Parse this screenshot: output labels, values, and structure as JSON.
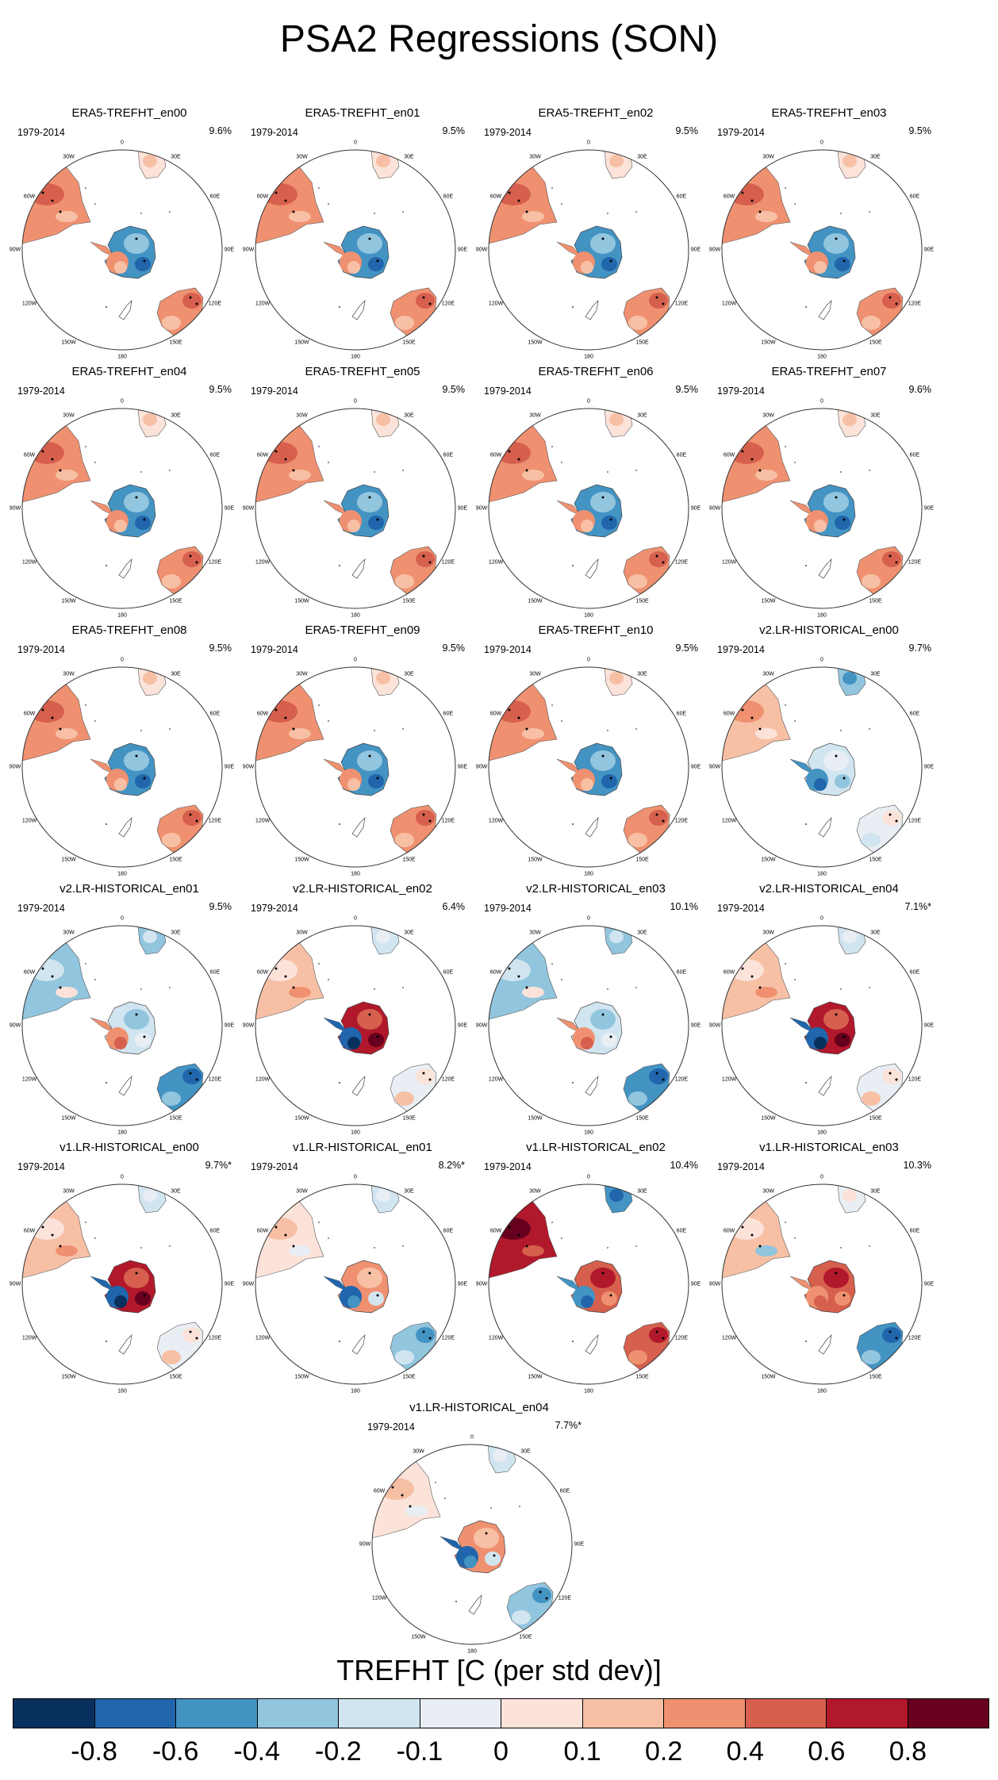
{
  "title": "PSA2 Regressions (SON)",
  "colorbar": {
    "title": "TREFHT [C (per std dev)]",
    "labels": [
      "-0.8",
      "-0.6",
      "-0.4",
      "-0.2",
      "-0.1",
      "0",
      "0.1",
      "0.2",
      "0.4",
      "0.6",
      "0.8"
    ],
    "colors": [
      "#08305e",
      "#2166ac",
      "#4393c3",
      "#92c5de",
      "#d1e5f0",
      "#e9eef4",
      "#fbe3da",
      "#f7c0a5",
      "#ef9170",
      "#d6604d",
      "#b2182b",
      "#67001f"
    ]
  },
  "lon_labels": [
    "0",
    "30E",
    "60E",
    "90E",
    "120E",
    "150E",
    "180",
    "150W",
    "120W",
    "90W",
    "60W",
    "30W"
  ],
  "chart_data": [
    {
      "type": "heatmap",
      "title": "ERA5-TREFHT_en00",
      "period": "1979-2014",
      "variance": "9.6%",
      "pattern": "era5"
    },
    {
      "type": "heatmap",
      "title": "ERA5-TREFHT_en01",
      "period": "1979-2014",
      "variance": "9.5%",
      "pattern": "era5"
    },
    {
      "type": "heatmap",
      "title": "ERA5-TREFHT_en02",
      "period": "1979-2014",
      "variance": "9.5%",
      "pattern": "era5"
    },
    {
      "type": "heatmap",
      "title": "ERA5-TREFHT_en03",
      "period": "1979-2014",
      "variance": "9.5%",
      "pattern": "era5"
    },
    {
      "type": "heatmap",
      "title": "ERA5-TREFHT_en04",
      "period": "1979-2014",
      "variance": "9.5%",
      "pattern": "era5"
    },
    {
      "type": "heatmap",
      "title": "ERA5-TREFHT_en05",
      "period": "1979-2014",
      "variance": "9.5%",
      "pattern": "era5"
    },
    {
      "type": "heatmap",
      "title": "ERA5-TREFHT_en06",
      "period": "1979-2014",
      "variance": "9.5%",
      "pattern": "era5"
    },
    {
      "type": "heatmap",
      "title": "ERA5-TREFHT_en07",
      "period": "1979-2014",
      "variance": "9.6%",
      "pattern": "era5"
    },
    {
      "type": "heatmap",
      "title": "ERA5-TREFHT_en08",
      "period": "1979-2014",
      "variance": "9.5%",
      "pattern": "era5"
    },
    {
      "type": "heatmap",
      "title": "ERA5-TREFHT_en09",
      "period": "1979-2014",
      "variance": "9.5%",
      "pattern": "era5"
    },
    {
      "type": "heatmap",
      "title": "ERA5-TREFHT_en10",
      "period": "1979-2014",
      "variance": "9.5%",
      "pattern": "era5"
    },
    {
      "type": "heatmap",
      "title": "v2.LR-HISTORICAL_en00",
      "period": "1979-2014",
      "variance": "9.7%",
      "pattern": "v2a"
    },
    {
      "type": "heatmap",
      "title": "v2.LR-HISTORICAL_en01",
      "period": "1979-2014",
      "variance": "9.5%",
      "pattern": "v2b"
    },
    {
      "type": "heatmap",
      "title": "v2.LR-HISTORICAL_en02",
      "period": "1979-2014",
      "variance": "6.4%",
      "pattern": "v2c"
    },
    {
      "type": "heatmap",
      "title": "v2.LR-HISTORICAL_en03",
      "period": "1979-2014",
      "variance": "10.1%",
      "pattern": "v2b"
    },
    {
      "type": "heatmap",
      "title": "v2.LR-HISTORICAL_en04",
      "period": "1979-2014",
      "variance": "7.1%*",
      "pattern": "v2c"
    },
    {
      "type": "heatmap",
      "title": "v1.LR-HISTORICAL_en00",
      "period": "1979-2014",
      "variance": "9.7%*",
      "pattern": "v2c"
    },
    {
      "type": "heatmap",
      "title": "v1.LR-HISTORICAL_en01",
      "period": "1979-2014",
      "variance": "8.2%*",
      "pattern": "v1b"
    },
    {
      "type": "heatmap",
      "title": "v1.LR-HISTORICAL_en02",
      "period": "1979-2014",
      "variance": "10.4%",
      "pattern": "v1c"
    },
    {
      "type": "heatmap",
      "title": "v1.LR-HISTORICAL_en03",
      "period": "1979-2014",
      "variance": "10.3%",
      "pattern": "v1d"
    },
    {
      "type": "heatmap",
      "title": "v1.LR-HISTORICAL_en04",
      "period": "1979-2014",
      "variance": "7.7%*",
      "pattern": "v1b"
    }
  ]
}
